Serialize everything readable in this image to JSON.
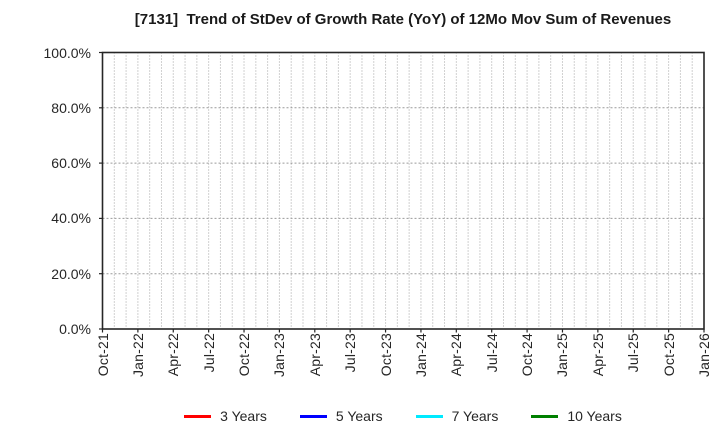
{
  "chart_data": {
    "type": "line",
    "title": "[7131]  Trend of StDev of Growth Rate (YoY) of 12Mo Mov Sum of Revenues",
    "xlabel": "",
    "ylabel": "",
    "x_tick_labels": [
      "Oct-21",
      "Jan-22",
      "Apr-22",
      "Jul-22",
      "Oct-22",
      "Jan-23",
      "Apr-23",
      "Jul-23",
      "Oct-23",
      "Jan-24",
      "Apr-24",
      "Jul-24",
      "Oct-24",
      "Jan-25",
      "Apr-25",
      "Jul-25",
      "Oct-25",
      "Jan-26"
    ],
    "x_months_per_major_tick": 3,
    "x_total_months": 51,
    "y_ticks": [
      0,
      20,
      40,
      60,
      80,
      100
    ],
    "y_tick_labels": [
      "0.0%",
      "20.0%",
      "40.0%",
      "60.0%",
      "80.0%",
      "100.0%"
    ],
    "ylim": [
      0,
      100
    ],
    "grid": "dotted",
    "legend_position": "bottom",
    "series": [
      {
        "name": "3 Years",
        "color": "#ff0000",
        "values": []
      },
      {
        "name": "5 Years",
        "color": "#0000ff",
        "values": []
      },
      {
        "name": "7 Years",
        "color": "#00eaff",
        "values": []
      },
      {
        "name": "10 Years",
        "color": "#008000",
        "values": []
      }
    ]
  }
}
